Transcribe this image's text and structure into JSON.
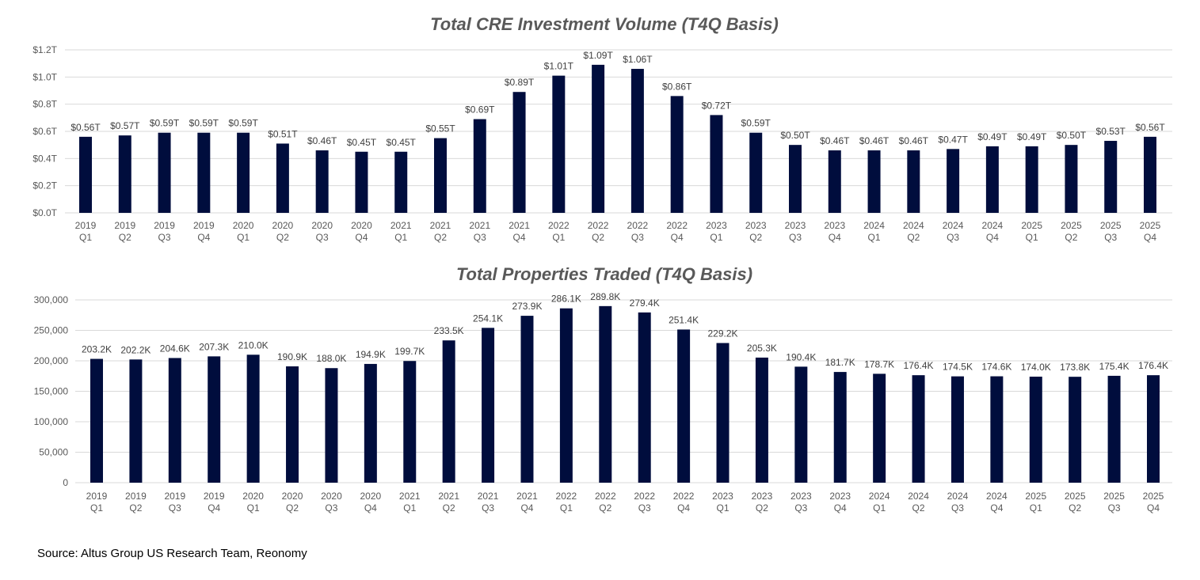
{
  "colors": {
    "bar": "#000d3d",
    "grid": "#d9d9d9",
    "text": "#595959"
  },
  "source": "Source: Altus Group US Research Team, Reonomy",
  "chart_data": [
    {
      "type": "bar",
      "title": "Total CRE Investment Volume (T4Q Basis)",
      "xlabel": "",
      "ylabel": "",
      "ylim": [
        0,
        1.2
      ],
      "yticks": [
        0,
        0.2,
        0.4,
        0.6,
        0.8,
        1.0,
        1.2
      ],
      "ytick_labels": [
        "$0.0T",
        "$0.2T",
        "$0.4T",
        "$0.6T",
        "$0.8T",
        "$1.0T",
        "$1.2T"
      ],
      "grid": true,
      "categories": [
        "2019 Q1",
        "2019 Q2",
        "2019 Q3",
        "2019 Q4",
        "2020 Q1",
        "2020 Q2",
        "2020 Q3",
        "2020 Q4",
        "2021 Q1",
        "2021 Q2",
        "2021 Q3",
        "2021 Q4",
        "2022 Q1",
        "2022 Q2",
        "2022 Q3",
        "2022 Q4",
        "2023 Q1",
        "2023 Q2",
        "2023 Q3",
        "2023 Q4",
        "2024 Q1",
        "2024 Q2",
        "2024 Q3",
        "2024 Q4",
        "2025 Q1",
        "2025 Q2",
        "2025 Q3",
        "2025 Q4"
      ],
      "values": [
        0.56,
        0.57,
        0.59,
        0.59,
        0.59,
        0.51,
        0.46,
        0.45,
        0.45,
        0.55,
        0.69,
        0.89,
        1.01,
        1.09,
        1.06,
        0.86,
        0.72,
        0.59,
        0.5,
        0.46,
        0.46,
        0.46,
        0.47,
        0.49,
        0.49,
        0.5,
        0.53,
        0.56
      ],
      "data_labels": [
        "$0.56T",
        "$0.57T",
        "$0.59T",
        "$0.59T",
        "$0.59T",
        "$0.51T",
        "$0.46T",
        "$0.45T",
        "$0.45T",
        "$0.55T",
        "$0.69T",
        "$0.89T",
        "$1.01T",
        "$1.09T",
        "$1.06T",
        "$0.86T",
        "$0.72T",
        "$0.59T",
        "$0.50T",
        "$0.46T",
        "$0.46T",
        "$0.46T",
        "$0.47T",
        "$0.49T",
        "$0.49T",
        "$0.50T",
        "$0.53T",
        "$0.56T"
      ]
    },
    {
      "type": "bar",
      "title": "Total Properties Traded (T4Q Basis)",
      "xlabel": "",
      "ylabel": "",
      "ylim": [
        0,
        300000
      ],
      "yticks": [
        0,
        50000,
        100000,
        150000,
        200000,
        250000,
        300000
      ],
      "ytick_labels": [
        "0",
        "50,000",
        "100,000",
        "150,000",
        "200,000",
        "250,000",
        "300,000"
      ],
      "grid": true,
      "categories": [
        "2019 Q1",
        "2019 Q2",
        "2019 Q3",
        "2019 Q4",
        "2020 Q1",
        "2020 Q2",
        "2020 Q3",
        "2020 Q4",
        "2021 Q1",
        "2021 Q2",
        "2021 Q3",
        "2021 Q4",
        "2022 Q1",
        "2022 Q2",
        "2022 Q3",
        "2022 Q4",
        "2023 Q1",
        "2023 Q2",
        "2023 Q3",
        "2023 Q4",
        "2024 Q1",
        "2024 Q2",
        "2024 Q3",
        "2024 Q4",
        "2025 Q1",
        "2025 Q2",
        "2025 Q3",
        "2025 Q4"
      ],
      "values": [
        203200,
        202200,
        204600,
        207300,
        210000,
        190900,
        188000,
        194900,
        199700,
        233500,
        254100,
        273900,
        286100,
        289800,
        279400,
        251400,
        229200,
        205300,
        190400,
        181700,
        178700,
        176400,
        174500,
        174600,
        174000,
        173800,
        175400,
        176400
      ],
      "data_labels": [
        "203.2K",
        "202.2K",
        "204.6K",
        "207.3K",
        "210.0K",
        "190.9K",
        "188.0K",
        "194.9K",
        "199.7K",
        "233.5K",
        "254.1K",
        "273.9K",
        "286.1K",
        "289.8K",
        "279.4K",
        "251.4K",
        "229.2K",
        "205.3K",
        "190.4K",
        "181.7K",
        "178.7K",
        "176.4K",
        "174.5K",
        "174.6K",
        "174.0K",
        "173.8K",
        "175.4K",
        "176.4K"
      ]
    }
  ]
}
